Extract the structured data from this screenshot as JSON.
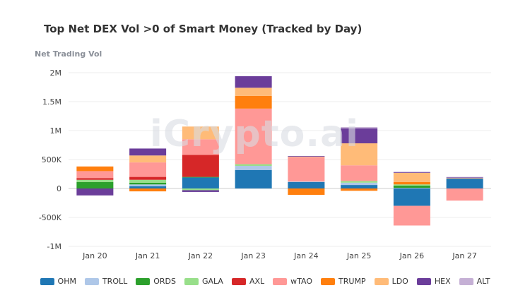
{
  "chart_data": {
    "type": "bar",
    "stacked": true,
    "title": "Top Net DEX Vol >0 of Smart Money (Tracked by Day)",
    "ylabel": "Net Trading Vol",
    "xlabel": "",
    "ylim": [
      -1000000,
      2000000
    ],
    "yticks": [
      {
        "value": 2000000,
        "label": "2M"
      },
      {
        "value": 1500000,
        "label": "1.5M"
      },
      {
        "value": 1000000,
        "label": "1M"
      },
      {
        "value": 500000,
        "label": "500K"
      },
      {
        "value": 0,
        "label": "0"
      },
      {
        "value": -500000,
        "label": "-500K"
      },
      {
        "value": -1000000,
        "label": "-1M"
      }
    ],
    "categories": [
      "Jan 20",
      "Jan 21",
      "Jan 22",
      "Jan 23",
      "Jan 24",
      "Jan 25",
      "Jan 26",
      "Jan 27"
    ],
    "grid": true,
    "legend_position": "bottom",
    "watermark": "iCrypto.ai",
    "series": [
      {
        "name": "OHM",
        "color": "#1f77b4",
        "values": [
          0,
          40000,
          190000,
          320000,
          110000,
          60000,
          -300000,
          170000
        ]
      },
      {
        "name": "TROLL",
        "color": "#aec7e8",
        "values": [
          0,
          30000,
          0,
          70000,
          10000,
          40000,
          10000,
          0
        ]
      },
      {
        "name": "ORDS",
        "color": "#2ca02c",
        "values": [
          110000,
          30000,
          10000,
          0,
          0,
          0,
          40000,
          0
        ]
      },
      {
        "name": "GALA",
        "color": "#98df8a",
        "values": [
          40000,
          50000,
          -30000,
          30000,
          0,
          30000,
          20000,
          0
        ]
      },
      {
        "name": "AXL",
        "color": "#d62728",
        "values": [
          30000,
          50000,
          380000,
          0,
          0,
          0,
          0,
          0
        ]
      },
      {
        "name": "wTAO",
        "color": "#ff9896",
        "values": [
          120000,
          250000,
          270000,
          960000,
          420000,
          270000,
          -340000,
          -210000
        ]
      },
      {
        "name": "TRUMP",
        "color": "#ff7f0e",
        "values": [
          80000,
          -50000,
          0,
          220000,
          -110000,
          -40000,
          40000,
          0
        ]
      },
      {
        "name": "LDO",
        "color": "#ffbb78",
        "values": [
          0,
          120000,
          220000,
          140000,
          10000,
          380000,
          160000,
          10000
        ]
      },
      {
        "name": "HEX",
        "color": "#6b3d9a",
        "values": [
          -120000,
          120000,
          -30000,
          200000,
          10000,
          260000,
          10000,
          10000
        ]
      },
      {
        "name": "ALT",
        "color": "#c5b0d5",
        "values": [
          0,
          0,
          0,
          0,
          0,
          20000,
          10000,
          10000
        ]
      }
    ]
  }
}
